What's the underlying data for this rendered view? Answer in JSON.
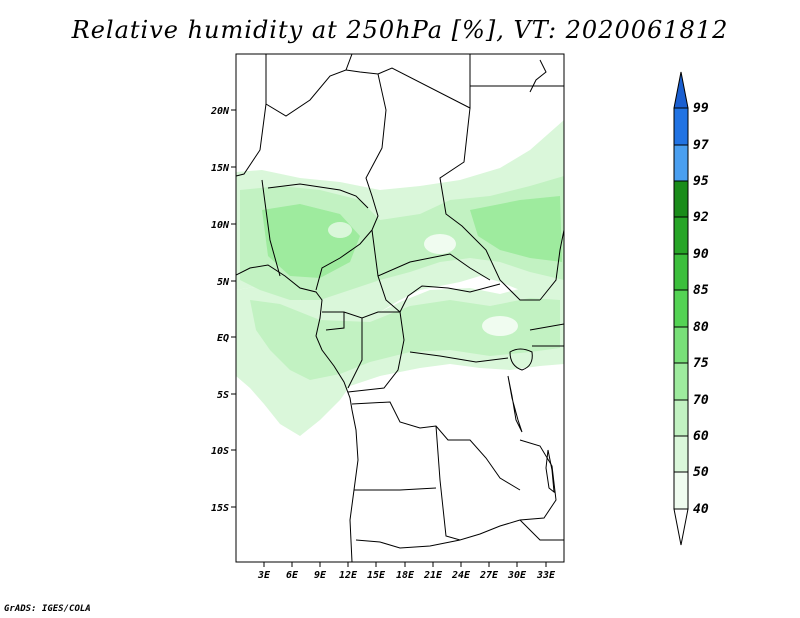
{
  "title": "Relative humidity at 250hPa [%], VT: 2020061812",
  "credit": "GrADS: IGES/COLA",
  "map": {
    "lat_labels": [
      "20N",
      "15N",
      "10N",
      "5N",
      "EQ",
      "5S",
      "10S",
      "15S"
    ],
    "lon_labels": [
      "3E",
      "6E",
      "9E",
      "12E",
      "15E",
      "18E",
      "21E",
      "24E",
      "27E",
      "30E",
      "33E"
    ]
  },
  "colorbar": {
    "levels": [
      "99",
      "97",
      "95",
      "92",
      "90",
      "85",
      "80",
      "75",
      "70",
      "60",
      "50",
      "40"
    ],
    "colors": {
      "95-97": "#4a9ff0",
      "97-99": "#2173e3",
      "99+": "#1a5fd0",
      "92-95": "#1a8c1a",
      "90-92": "#27a527",
      "85-90": "#3cbf3c",
      "80-85": "#54d354",
      "75-80": "#78e078",
      "70-75": "#9eeb9e",
      "60-70": "#c2f2c2",
      "50-60": "#daf7da",
      "40-50": "#f0fcf0"
    }
  }
}
